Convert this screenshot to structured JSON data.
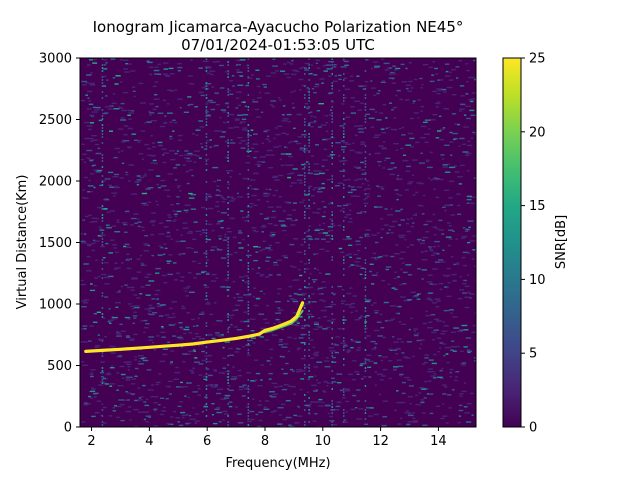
{
  "chart_data": {
    "type": "heatmap",
    "title": "Ionogram Jicamarca-Ayacucho Polarization NE45°",
    "subtitle": "07/01/2024-01:53:05 UTC",
    "xlabel": "Frequency(MHz)",
    "ylabel": "Virtual Distance(Km)",
    "xlim": [
      1.6,
      15.3
    ],
    "ylim": [
      0,
      3000
    ],
    "x_ticks": [
      2,
      4,
      6,
      8,
      10,
      12,
      14
    ],
    "y_ticks": [
      0,
      500,
      1000,
      1500,
      2000,
      2500,
      3000
    ],
    "colorbar": {
      "label": "SNR[dB]",
      "range": [
        0,
        25
      ],
      "ticks": [
        0,
        5,
        10,
        15,
        20,
        25
      ],
      "colormap": "viridis"
    },
    "grid": false,
    "trace": {
      "name": "",
      "x": [
        1.8,
        2.5,
        3.0,
        3.5,
        4.0,
        4.5,
        5.0,
        5.5,
        6.0,
        6.5,
        7.0,
        7.5,
        7.8,
        8.0,
        8.3,
        8.6,
        8.9,
        9.1,
        9.3
      ],
      "y": [
        615,
        625,
        632,
        640,
        648,
        657,
        665,
        675,
        690,
        705,
        720,
        740,
        755,
        785,
        805,
        830,
        860,
        900,
        1010
      ]
    },
    "trace_weak": {
      "x": [
        8.0,
        8.3,
        8.6,
        8.9,
        9.1,
        9.3
      ],
      "y": [
        770,
        790,
        815,
        840,
        880,
        945
      ]
    }
  }
}
